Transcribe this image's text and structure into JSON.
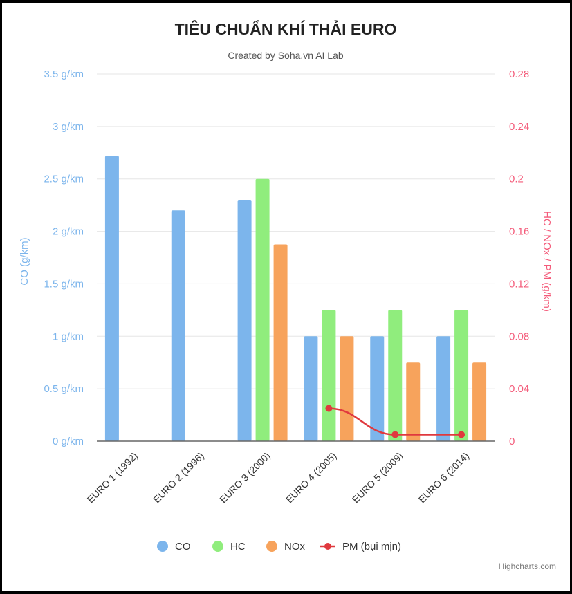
{
  "chart_data": {
    "type": "bar",
    "title": "TIÊU CHUẨN KHÍ THẢI EURO",
    "subtitle": "Created by Soha.vn AI Lab",
    "categories": [
      "EURO 1 (1992)",
      "EURO 2 (1996)",
      "EURO 3 (2000)",
      "EURO 4 (2005)",
      "EURO 5 (2009)",
      "EURO 6 (2014)"
    ],
    "y_left": {
      "label": "CO (g/km)",
      "range": [
        0,
        3.5
      ],
      "ticks": [
        0,
        0.5,
        1,
        1.5,
        2,
        2.5,
        3,
        3.5
      ],
      "tick_labels": [
        "0 g/km",
        "0.5 g/km",
        "1 g/km",
        "1.5 g/km",
        "2 g/km",
        "2.5 g/km",
        "3 g/km",
        "3.5 g/km"
      ],
      "color": "#7cb5ec"
    },
    "y_right": {
      "label": "HC / NOx / PM (g/km)",
      "range": [
        0,
        0.28
      ],
      "ticks": [
        0,
        0.04,
        0.08,
        0.12,
        0.16,
        0.2,
        0.24,
        0.28
      ],
      "tick_labels": [
        "0",
        "0.04",
        "0.08",
        "0.12",
        "0.16",
        "0.2",
        "0.24",
        "0.28"
      ],
      "color": "#f45b7a"
    },
    "grid": true,
    "legend_position": "bottom-center",
    "series": [
      {
        "name": "CO",
        "type": "column",
        "axis": "left",
        "color": "#7cb5ec",
        "values": [
          2.72,
          2.2,
          2.3,
          1.0,
          1.0,
          1.0
        ]
      },
      {
        "name": "HC",
        "type": "column",
        "axis": "right",
        "color": "#90ed7d",
        "values": [
          null,
          null,
          0.2,
          0.1,
          0.1,
          0.1
        ]
      },
      {
        "name": "NOx",
        "type": "column",
        "axis": "right",
        "color": "#f7a35c",
        "values": [
          null,
          null,
          0.15,
          0.08,
          0.06,
          0.06
        ]
      },
      {
        "name": "PM (bụi mịn)",
        "type": "line",
        "axis": "right",
        "color": "#e0393e",
        "values": [
          null,
          null,
          null,
          0.025,
          0.005,
          0.005
        ]
      }
    ],
    "credit": "Highcharts.com"
  }
}
